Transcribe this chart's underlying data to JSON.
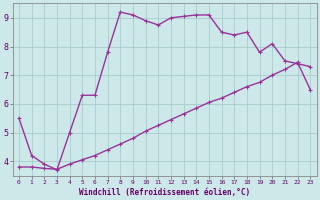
{
  "xlabel": "Windchill (Refroidissement éolien,°C)",
  "bg_color": "#cce8e8",
  "line_color": "#993399",
  "grid_color": "#aacccc",
  "axis_label_color": "#660066",
  "tick_label_color": "#660066",
  "xlim_min": -0.5,
  "xlim_max": 23.5,
  "ylim_min": 3.5,
  "ylim_max": 9.5,
  "xticks": [
    0,
    1,
    2,
    3,
    4,
    5,
    6,
    7,
    8,
    9,
    10,
    11,
    12,
    13,
    14,
    15,
    16,
    17,
    18,
    19,
    20,
    21,
    22,
    23
  ],
  "yticks": [
    4,
    5,
    6,
    7,
    8,
    9
  ],
  "curve1_x": [
    0,
    1,
    2,
    3,
    4,
    5,
    6,
    7,
    8,
    9,
    10,
    11,
    12,
    13,
    14,
    15,
    16,
    17,
    18,
    19,
    20,
    21,
    22,
    23
  ],
  "curve1_y": [
    5.5,
    4.2,
    3.9,
    3.7,
    5.0,
    6.3,
    6.3,
    7.8,
    9.2,
    9.1,
    8.9,
    8.75,
    9.0,
    9.05,
    9.1,
    9.1,
    8.5,
    8.4,
    8.5,
    7.8,
    8.1,
    7.5,
    7.4,
    7.3
  ],
  "curve2_x": [
    0,
    1,
    2,
    3,
    4,
    5,
    6,
    7,
    8,
    9,
    10,
    11,
    12,
    13,
    14,
    15,
    16,
    17,
    18,
    19,
    20,
    21,
    22,
    23
  ],
  "curve2_y": [
    3.8,
    3.8,
    3.75,
    3.72,
    3.9,
    4.05,
    4.2,
    4.4,
    4.6,
    4.8,
    5.05,
    5.25,
    5.45,
    5.65,
    5.85,
    6.05,
    6.2,
    6.4,
    6.6,
    6.75,
    7.0,
    7.2,
    7.45,
    6.5
  ],
  "markersize": 3,
  "linewidth": 1.0
}
